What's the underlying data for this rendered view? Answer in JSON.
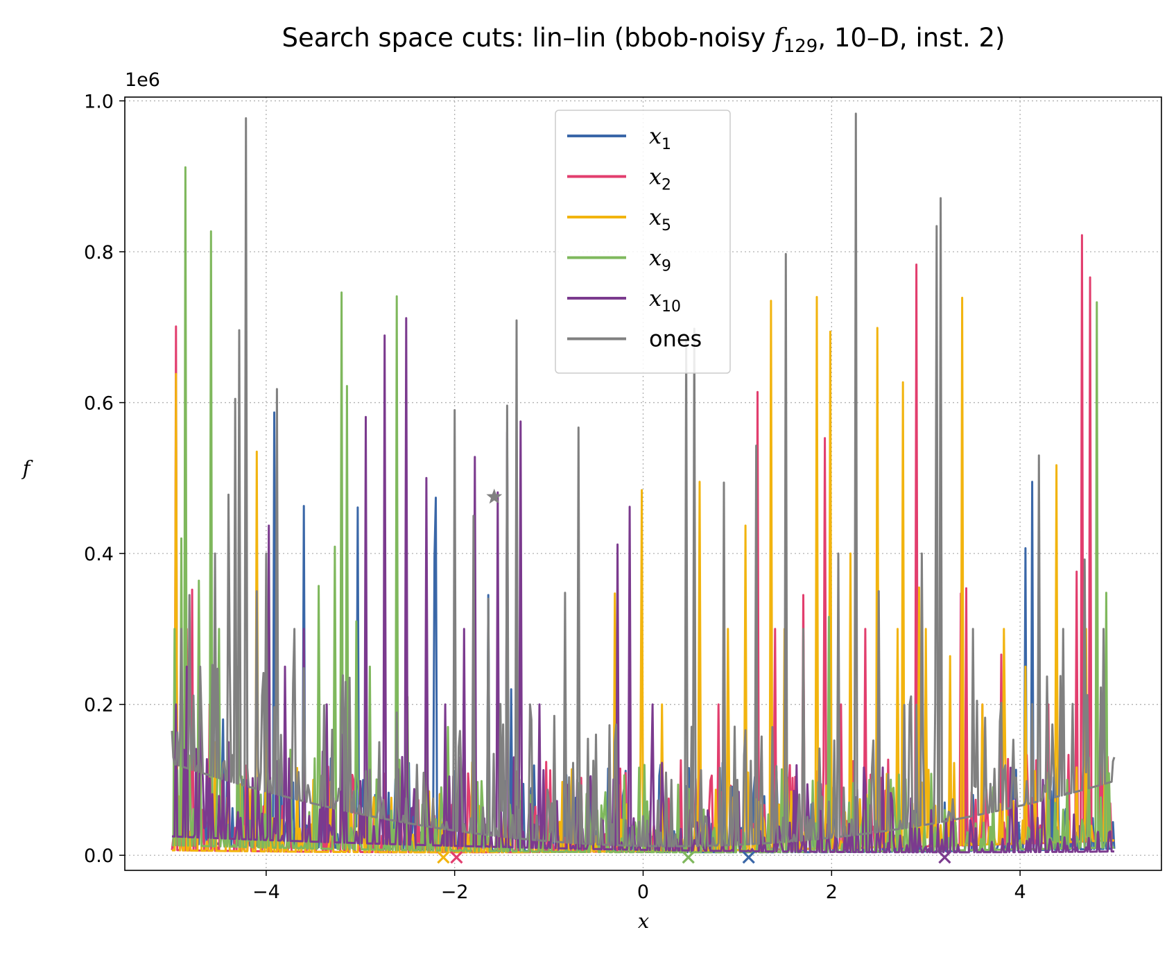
{
  "chart_data": {
    "type": "line",
    "title_parts": {
      "prefix": "Search space cuts: lin–lin (bbob-noisy ",
      "fn": "f",
      "fn_sub": "129",
      "suffix": ", 10–D, inst. 2)"
    },
    "xlabel": "x",
    "ylabel": "f",
    "offset_label": "1e6",
    "xlim": [
      -5.5,
      5.5
    ],
    "ylim": [
      -0.02,
      1.005
    ],
    "x_ticks": [
      -4,
      -2,
      0,
      2,
      4
    ],
    "x_tick_labels": [
      "−4",
      "−2",
      "0",
      "2",
      "4"
    ],
    "y_ticks": [
      0.0,
      0.2,
      0.4,
      0.6,
      0.8,
      1.0
    ],
    "y_tick_labels": [
      "0.0",
      "0.2",
      "0.4",
      "0.6",
      "0.8",
      "1.0"
    ],
    "grid": true,
    "legend_position": "upper center",
    "series": [
      {
        "name": "x",
        "sub": "1",
        "color": "#3a67a8",
        "opt_x": 1.12,
        "peaks": [
          [
            -4.95,
            0.22
          ],
          [
            -4.85,
            0.15
          ],
          [
            -4.7,
            0.12
          ],
          [
            -4.45,
            0.18
          ],
          [
            -4.25,
            0.1
          ],
          [
            -3.92,
            0.587
          ],
          [
            -3.6,
            0.463
          ],
          [
            -3.4,
            0.11
          ],
          [
            -3.2,
            0.09
          ],
          [
            -3.03,
            0.461
          ],
          [
            -2.85,
            0.08
          ],
          [
            -2.6,
            0.12
          ],
          [
            -2.4,
            0.1
          ],
          [
            -2.22,
            0.395
          ],
          [
            -2.2,
            0.474
          ],
          [
            -1.65,
            0.345
          ],
          [
            -1.4,
            0.22
          ],
          [
            -1.2,
            0.07
          ],
          [
            -0.95,
            0.12
          ],
          [
            -0.57,
            0.103
          ],
          [
            -0.2,
            0.09
          ],
          [
            0.3,
            0.05
          ],
          [
            1.0,
            0.08
          ],
          [
            1.4,
            0.06
          ],
          [
            2.0,
            0.09
          ],
          [
            2.7,
            0.1
          ],
          [
            3.2,
            0.07
          ],
          [
            3.5,
            0.08
          ],
          [
            3.8,
            0.06
          ],
          [
            4.06,
            0.407
          ],
          [
            4.13,
            0.495
          ],
          [
            4.4,
            0.12
          ],
          [
            4.7,
            0.1
          ]
        ]
      },
      {
        "name": "x",
        "sub": "2",
        "color": "#e23e6e",
        "opt_x": -1.98,
        "peaks": [
          [
            -4.95,
            0.701
          ],
          [
            -4.85,
            0.3
          ],
          [
            -4.78,
            0.352
          ],
          [
            -4.6,
            0.2
          ],
          [
            -4.3,
            0.1
          ],
          [
            -3.9,
            0.05
          ],
          [
            -3.3,
            0.03
          ],
          [
            -2.5,
            0.02
          ],
          [
            0.4,
            0.126
          ],
          [
            0.6,
            0.18
          ],
          [
            0.8,
            0.2
          ],
          [
            1.22,
            0.614
          ],
          [
            1.4,
            0.3
          ],
          [
            1.7,
            0.345
          ],
          [
            1.93,
            0.553
          ],
          [
            2.1,
            0.2
          ],
          [
            2.35,
            0.3
          ],
          [
            2.5,
            0.1
          ],
          [
            2.9,
            0.783
          ],
          [
            3.2,
            0.05
          ],
          [
            3.37,
            0.347
          ],
          [
            3.43,
            0.354
          ],
          [
            3.6,
            0.2
          ],
          [
            3.8,
            0.266
          ],
          [
            4.07,
            0.133
          ],
          [
            4.3,
            0.2
          ],
          [
            4.6,
            0.376
          ],
          [
            4.66,
            0.822
          ],
          [
            4.74,
            0.766
          ],
          [
            4.85,
            0.2
          ]
        ]
      },
      {
        "name": "x",
        "sub": "5",
        "color": "#f2b40f",
        "opt_x": -2.12,
        "peaks": [
          [
            -4.96,
            0.638
          ],
          [
            -4.86,
            0.632
          ],
          [
            -4.72,
            0.2
          ],
          [
            -4.55,
            0.15
          ],
          [
            -4.1,
            0.535
          ],
          [
            -4.0,
            0.24
          ],
          [
            -3.5,
            0.1
          ],
          [
            -3.0,
            0.08
          ],
          [
            -2.5,
            0.06
          ],
          [
            -2.0,
            0.04
          ],
          [
            -0.3,
            0.347
          ],
          [
            -0.02,
            0.484
          ],
          [
            0.2,
            0.2
          ],
          [
            0.6,
            0.495
          ],
          [
            0.9,
            0.3
          ],
          [
            1.09,
            0.437
          ],
          [
            1.35,
            0.735
          ],
          [
            1.5,
            0.3
          ],
          [
            1.85,
            0.74
          ],
          [
            1.98,
            0.694
          ],
          [
            2.2,
            0.4
          ],
          [
            2.48,
            0.699
          ],
          [
            2.7,
            0.3
          ],
          [
            2.75,
            0.627
          ],
          [
            2.93,
            0.355
          ],
          [
            3.0,
            0.3
          ],
          [
            3.26,
            0.264
          ],
          [
            3.39,
            0.739
          ],
          [
            3.6,
            0.2
          ],
          [
            3.83,
            0.3
          ],
          [
            4.05,
            0.25
          ],
          [
            4.39,
            0.517
          ],
          [
            4.7,
            0.3
          ],
          [
            4.95,
            0.1
          ]
        ]
      },
      {
        "name": "x",
        "sub": "9",
        "color": "#7fb85d",
        "opt_x": 0.48,
        "peaks": [
          [
            -4.97,
            0.3
          ],
          [
            -4.9,
            0.42
          ],
          [
            -4.86,
            0.912
          ],
          [
            -4.72,
            0.364
          ],
          [
            -4.59,
            0.827
          ],
          [
            -4.5,
            0.3
          ],
          [
            -4.3,
            0.25
          ],
          [
            -3.75,
            0.14
          ],
          [
            -3.44,
            0.357
          ],
          [
            -3.27,
            0.409
          ],
          [
            -3.2,
            0.746
          ],
          [
            -3.15,
            0.622
          ],
          [
            -3.05,
            0.31
          ],
          [
            -2.9,
            0.25
          ],
          [
            -2.61,
            0.741
          ],
          [
            -2.5,
            0.21
          ],
          [
            -2.3,
            0.272
          ],
          [
            -2.07,
            0.17
          ],
          [
            -1.8,
            0.1
          ],
          [
            -1.2,
            0.08
          ],
          [
            -0.5,
            0.06
          ],
          [
            0.3,
            0.04
          ],
          [
            1.0,
            0.05
          ],
          [
            1.55,
            0.04
          ],
          [
            1.97,
            0.316
          ],
          [
            2.4,
            0.1
          ],
          [
            3.2,
            0.06
          ],
          [
            4.3,
            0.11
          ],
          [
            4.5,
            0.1
          ],
          [
            4.82,
            0.733
          ],
          [
            4.92,
            0.348
          ]
        ]
      },
      {
        "name": "x",
        "sub": "10",
        "color": "#7b3a8e",
        "opt_x": 3.2,
        "peaks": [
          [
            -4.95,
            0.2
          ],
          [
            -4.85,
            0.25
          ],
          [
            -4.7,
            0.2
          ],
          [
            -4.4,
            0.15
          ],
          [
            -4.2,
            0.1
          ],
          [
            -3.97,
            0.437
          ],
          [
            -3.8,
            0.25
          ],
          [
            -3.6,
            0.3
          ],
          [
            -3.35,
            0.2
          ],
          [
            -3.2,
            0.16
          ],
          [
            -2.95,
            0.581
          ],
          [
            -2.74,
            0.689
          ],
          [
            -2.52,
            0.712
          ],
          [
            -2.3,
            0.5
          ],
          [
            -2.1,
            0.2
          ],
          [
            -1.9,
            0.3
          ],
          [
            -1.78,
            0.528
          ],
          [
            -1.55,
            0.481
          ],
          [
            -1.45,
            0.561
          ],
          [
            -1.3,
            0.575
          ],
          [
            -1.1,
            0.2
          ],
          [
            -0.95,
            0.15
          ],
          [
            -0.7,
            0.1
          ],
          [
            -0.27,
            0.412
          ],
          [
            -0.14,
            0.462
          ],
          [
            0.1,
            0.2
          ],
          [
            0.3,
            0.08
          ],
          [
            0.5,
            0.06
          ],
          [
            0.7,
            0.05
          ],
          [
            1.0,
            0.02
          ],
          [
            2.5,
            0.02
          ],
          [
            3.5,
            0.02
          ],
          [
            4.95,
            0.03
          ]
        ]
      },
      {
        "name": "ones",
        "sub": "",
        "color": "#808080",
        "opt_x": null,
        "marker": [
          -1.58,
          0.475
        ],
        "peaks": [
          [
            -4.9,
            0.3
          ],
          [
            -4.82,
            0.345
          ],
          [
            -4.7,
            0.25
          ],
          [
            -4.55,
            0.4
          ],
          [
            -4.4,
            0.478
          ],
          [
            -4.33,
            0.605
          ],
          [
            -4.29,
            0.696
          ],
          [
            -4.22,
            0.977
          ],
          [
            -4.1,
            0.35
          ],
          [
            -4.0,
            0.4
          ],
          [
            -3.88,
            0.618
          ],
          [
            -3.7,
            0.3
          ],
          [
            -3.2,
            0.2
          ],
          [
            -2.8,
            0.15
          ],
          [
            -2.4,
            0.12
          ],
          [
            -2.0,
            0.59
          ],
          [
            -1.8,
            0.45
          ],
          [
            -1.65,
            0.34
          ],
          [
            -1.45,
            0.596
          ],
          [
            -1.35,
            0.709
          ],
          [
            -1.2,
            0.2
          ],
          [
            -0.83,
            0.348
          ],
          [
            -0.68,
            0.567
          ],
          [
            -0.5,
            0.16
          ],
          [
            -0.3,
            0.15
          ],
          [
            0.3,
            0.1
          ],
          [
            0.45,
            0.686
          ],
          [
            0.55,
            0.698
          ],
          [
            0.85,
            0.494
          ],
          [
            1.0,
            0.1
          ],
          [
            1.2,
            0.543
          ],
          [
            1.52,
            0.797
          ],
          [
            1.7,
            0.3
          ],
          [
            2.07,
            0.4
          ],
          [
            2.26,
            0.983
          ],
          [
            2.5,
            0.35
          ],
          [
            2.95,
            0.4
          ],
          [
            3.11,
            0.834
          ],
          [
            3.16,
            0.871
          ],
          [
            3.5,
            0.3
          ],
          [
            4.2,
            0.53
          ],
          [
            4.45,
            0.3
          ],
          [
            4.68,
            0.392
          ],
          [
            4.88,
            0.3
          ],
          [
            5.0,
            0.13
          ]
        ]
      }
    ]
  }
}
